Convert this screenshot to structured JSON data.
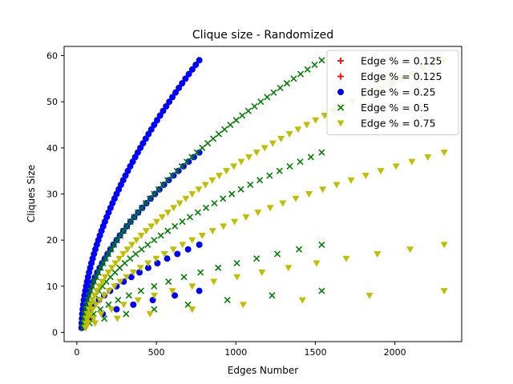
{
  "chart_data": {
    "type": "scatter",
    "title": "Clique size - Randomized",
    "xlabel": "Edges Number",
    "ylabel": "Cliques Size",
    "xlim": [
      -80,
      2420
    ],
    "ylim": [
      -2,
      62
    ],
    "x_ticks": [
      0,
      500,
      1000,
      1500,
      2000
    ],
    "x_tick_labels": [
      "0",
      "500",
      "1000",
      "1500",
      "2000"
    ],
    "y_ticks": [
      0,
      10,
      20,
      30,
      40,
      50,
      60
    ],
    "y_tick_labels": [
      "0",
      "10",
      "20",
      "30",
      "40",
      "50",
      "60"
    ],
    "grid": false,
    "legend_position": "top-right",
    "series": [
      {
        "name": "Edge % = 0.125",
        "marker": "plus",
        "color": "#ff0000",
        "ymax_groups": [],
        "xmax": 0,
        "x0": 0
      },
      {
        "name": "Edge % = 0.125",
        "marker": "plus",
        "color": "#ff0000",
        "ymax_groups": [],
        "xmax": 0,
        "x0": 0
      },
      {
        "name": "Edge % = 0.25",
        "marker": "circle",
        "color": "#0000ff",
        "ymax_groups": [
          9,
          19,
          39,
          59
        ],
        "xmax": 770,
        "x0": 30
      },
      {
        "name": "Edge % = 0.5",
        "marker": "x",
        "color": "#008000",
        "ymax_groups": [
          9,
          19,
          39,
          59
        ],
        "xmax": 1540,
        "x0": 40
      },
      {
        "name": "Edge % = 0.75",
        "marker": "triangle-down",
        "color": "#bfbf00",
        "ymax_groups": [
          9,
          19,
          39,
          59
        ],
        "xmax": 2310,
        "x0": 55
      }
    ]
  }
}
